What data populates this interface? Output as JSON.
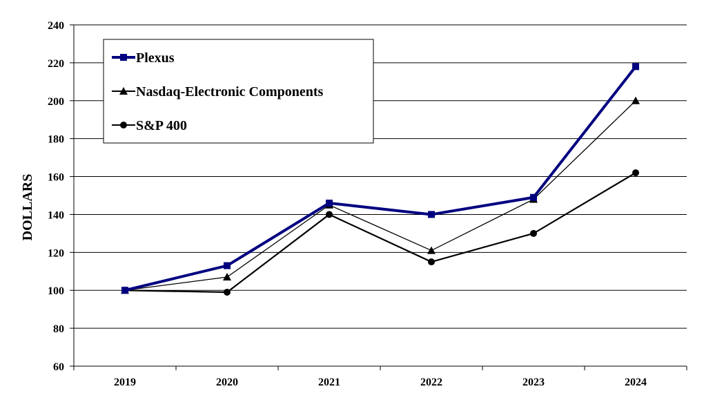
{
  "chart_data": {
    "type": "line",
    "title": "",
    "xlabel": "",
    "ylabel": "DOLLARS",
    "categories": [
      "2019",
      "2020",
      "2021",
      "2022",
      "2023",
      "2024"
    ],
    "ylim": [
      60,
      240
    ],
    "yticks": [
      60,
      80,
      100,
      120,
      140,
      160,
      180,
      200,
      220,
      240
    ],
    "grid": "horizontal",
    "legend_position": "top-left",
    "series": [
      {
        "name": "Plexus",
        "values": [
          100,
          113,
          146,
          140,
          149,
          218
        ],
        "color": "#000080",
        "marker": "square"
      },
      {
        "name": "Nasdaq-Electronic Components",
        "values": [
          100,
          107,
          145,
          121,
          148,
          200
        ],
        "color": "#000000",
        "marker": "triangle"
      },
      {
        "name": "S&P 400",
        "values": [
          100,
          99,
          140,
          115,
          130,
          162
        ],
        "color": "#000000",
        "marker": "circle"
      }
    ]
  }
}
